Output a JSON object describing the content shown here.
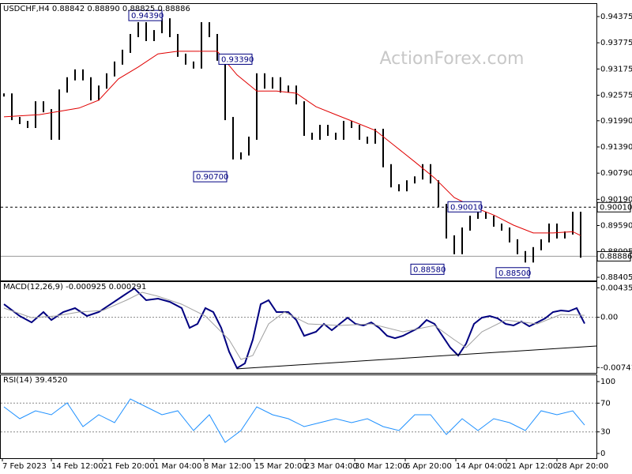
{
  "chart_data": [
    {
      "type": "line",
      "title": "USDCHF,H4 0.88842 0.88890 0.88825 0.88886",
      "watermark": "ActionForex.com",
      "xlim": [
        -0.5,
        75
      ],
      "ylim": [
        0.88333,
        0.94664
      ],
      "yticks": [
        0.94375,
        0.93775,
        0.93175,
        0.92575,
        {
          "value": 0.9199,
          "label": "0.91990"
        },
        {
          "value": 0.9139,
          "label": "0.91390"
        },
        {
          "value": 0.9079,
          "label": "0.90790"
        },
        {
          "value": 0.9019,
          "label": "0.90190"
        },
        {
          "value": 0.8959,
          "label": "0.89590"
        },
        0.88995,
        0.88405
      ],
      "series": [
        {
          "color": "#000000",
          "style": "bars",
          "values": [
            0.9258,
            0.9204,
            0.9195,
            0.9186,
            0.924,
            0.9222,
            0.9159,
            0.9267,
            0.9295,
            0.9313,
            0.9295,
            0.9249,
            0.9276,
            0.9304,
            0.9331,
            0.9358,
            0.9394,
            0.9421,
            0.9385,
            0.9403,
            0.943,
            0.9394,
            0.9349,
            0.9331,
            0.9322,
            0.9421,
            0.9394,
            0.934,
            0.9204,
            0.9114,
            0.9123,
            0.9159,
            0.9304,
            0.9276,
            0.9295,
            0.9267,
            0.9276,
            0.924,
            0.9168,
            0.9159,
            0.9186,
            0.9168,
            0.9159,
            0.9195,
            0.9186,
            0.9159,
            0.915,
            0.9177,
            0.9096,
            0.905,
            0.9041,
            0.9059,
            0.9068,
            0.9096,
            0.9059,
            0.9005,
            0.8933,
            0.8897,
            0.8951,
            0.8978,
            0.8987,
            0.8978,
            0.896,
            0.8951,
            0.8924,
            0.8897,
            0.8878,
            0.8906,
            0.8924,
            0.896,
            0.8933,
            0.8942,
            0.8987,
            0.8889
          ]
        },
        {
          "color": "#e00000",
          "x": [
            0,
            4.5,
            9.5,
            12,
            14.5,
            17,
            19.5,
            22,
            24.5,
            27,
            29.5,
            32,
            34.5,
            37,
            39.5,
            42,
            44.5,
            47,
            49.5,
            52,
            54.5,
            57,
            59.5,
            62,
            64.5,
            67,
            69.5,
            72,
            73
          ],
          "values": [
            0.9208,
            0.9213,
            0.9228,
            0.9246,
            0.9295,
            0.9322,
            0.9352,
            0.9358,
            0.9358,
            0.9358,
            0.9304,
            0.9267,
            0.9267,
            0.9262,
            0.9231,
            0.9213,
            0.9195,
            0.9177,
            0.9141,
            0.9105,
            0.9068,
            0.9023,
            0.9001,
            0.8983,
            0.896,
            0.8942,
            0.8942,
            0.8945,
            0.8936
          ]
        }
      ],
      "hlines": [
        {
          "value": 0.9001,
          "label": "0.90010",
          "style": "dashed"
        },
        {
          "value": 0.88886,
          "label": "0.88886",
          "style": "solid"
        }
      ],
      "annotations": [
        {
          "x": 15.8,
          "value": 0.9439,
          "label": "0.94390"
        },
        {
          "x": 27.2,
          "value": 0.9339,
          "label": "0.93390"
        },
        {
          "x": 24,
          "value": 0.907,
          "label": "0.90700"
        },
        {
          "x": 56.2,
          "value": 0.9001,
          "label": "0.90010"
        },
        {
          "x": 51.5,
          "value": 0.8858,
          "label": "0.88580"
        },
        {
          "x": 62.3,
          "value": 0.885,
          "label": "0.88500"
        }
      ]
    },
    {
      "type": "line",
      "title": "MACD(12,26,9) -0.000925 0.000291",
      "xlim": [
        -0.5,
        75
      ],
      "ylim": [
        -0.0082,
        0.0052
      ],
      "yticks": [
        0.004354,
        {
          "value": 0,
          "label": "0.00"
        },
        -0.007417
      ],
      "levels": [
        0
      ],
      "series": [
        {
          "color": "#000080",
          "width": 2,
          "x": [
            0,
            2,
            3.5,
            5,
            6,
            7.5,
            9,
            10.5,
            12,
            13.5,
            15,
            16.5,
            18,
            19.5,
            21,
            22.5,
            23.5,
            24.5,
            25.5,
            26.5,
            27.5,
            28.5,
            29.5,
            30.5,
            31.5,
            32.5,
            33.5,
            34.5,
            36,
            37,
            38,
            39.5,
            40.5,
            41.5,
            42.5,
            43.5,
            44.5,
            45.5,
            46.5,
            47.5,
            48.5,
            49.5,
            50.5,
            51.5,
            52.5,
            53.5,
            54.5,
            55.5,
            56.5,
            57.5,
            58.5,
            59.5,
            60.5,
            61.5,
            62.5,
            63.5,
            64.5,
            65.5,
            66.5,
            67.5,
            68.5,
            69.5,
            70.5,
            71.5,
            72.5,
            73.5
          ],
          "values": [
            0.00193,
            0.00019,
            -0.00075,
            0.00077,
            -0.0004,
            0.00077,
            0.00135,
            0.00019,
            0.00077,
            0.00193,
            0.0031,
            0.00426,
            0.00252,
            0.00275,
            0.00228,
            0.00135,
            -0.00156,
            -0.00098,
            0.00135,
            0.00077,
            -0.00156,
            -0.00506,
            -0.0075,
            -0.0068,
            -0.00331,
            0.00193,
            0.00252,
            0.00077,
            0.00077,
            -0.0004,
            -0.00273,
            -0.00214,
            -0.00098,
            -0.00191,
            -0.00098,
            -5e-05,
            -0.00098,
            -0.00121,
            -0.00075,
            -0.00156,
            -0.00273,
            -0.00308,
            -0.00273,
            -0.00214,
            -0.00156,
            -0.0004,
            -0.00098,
            -0.00273,
            -0.00447,
            -0.00564,
            -0.00389,
            -0.00098,
            -5e-05,
            0.00019,
            -0.00016,
            -0.00098,
            -0.00121,
            -0.00063,
            -0.00133,
            -0.00075,
            -0.00016,
            0.00077,
            0.001,
            0.00089,
            0.00135,
            -0.00093
          ]
        },
        {
          "color": "#a0a0a0",
          "width": 1,
          "x": [
            0,
            3.5,
            6.5,
            9.5,
            12.5,
            15.5,
            17.5,
            19.5,
            22.5,
            25.5,
            28.5,
            30,
            31.5,
            33.5,
            35.5,
            38.5,
            42.5,
            46.5,
            50.5,
            54.5,
            57,
            58.5,
            60.5,
            63.5,
            67.5,
            70.5,
            73.5
          ],
          "values": [
            0.00135,
            -5e-05,
            0.00019,
            0.00077,
            0.001,
            0.00252,
            0.00368,
            0.0031,
            0.00193,
            0.00019,
            -0.00331,
            -0.00622,
            -0.00564,
            -0.00098,
            0.00077,
            -0.00098,
            -0.00121,
            -0.00098,
            -0.00214,
            -0.00121,
            -0.00331,
            -0.00447,
            -0.00214,
            -0.0004,
            -0.00098,
            0.00042,
            0.00029
          ]
        }
      ],
      "trendline": {
        "x": [
          29.5,
          75
        ],
        "values": [
          -0.0076,
          -0.00424
        ]
      }
    },
    {
      "type": "line",
      "title": "RSI(14) 39.4520",
      "xlim": [
        -0.5,
        75
      ],
      "ylim": [
        -6.6,
        108.8
      ],
      "yticks": [
        100,
        70,
        30,
        0
      ],
      "levels": [
        70,
        30
      ],
      "series": [
        {
          "color": "#1e90ff",
          "width": 1,
          "x": [
            0,
            2,
            4,
            6,
            8,
            10,
            12,
            14,
            16,
            18,
            20,
            22,
            24,
            26,
            28,
            30,
            32,
            34,
            36,
            38,
            40,
            42,
            44,
            46,
            48,
            50,
            52,
            54,
            56,
            58,
            60,
            62,
            64,
            66,
            68,
            70,
            72,
            73.5
          ],
          "values": [
            64.8,
            48.4,
            59.3,
            53.8,
            70.3,
            37.4,
            53.8,
            42.9,
            75.8,
            64.8,
            53.8,
            59.3,
            31.9,
            53.8,
            15.4,
            31.9,
            64.8,
            53.8,
            48.4,
            37.4,
            42.9,
            48.4,
            42.9,
            48.4,
            37.4,
            31.9,
            53.8,
            53.8,
            26.4,
            48.4,
            31.9,
            48.4,
            42.9,
            31.9,
            59.3,
            53.8,
            59.3,
            39.45
          ]
        }
      ],
      "xticks": [
        {
          "value": -0.2,
          "label": "7 Feb 2023"
        },
        {
          "value": 6,
          "label": "14 Feb 12:00"
        },
        {
          "value": 12.5,
          "label": "21 Feb 20:00"
        },
        {
          "value": 19,
          "label": "1 Mar 04:00"
        },
        {
          "value": 25.3,
          "label": "8 Mar 12:00"
        },
        {
          "value": 31.7,
          "label": "15 Mar 20:00"
        },
        {
          "value": 38.1,
          "label": "23 Mar 04:00"
        },
        {
          "value": 44.4,
          "label": "30 Mar 12:00"
        },
        {
          "value": 50.8,
          "label": "6 Apr 20:00"
        },
        {
          "value": 57.2,
          "label": "14 Apr 04:00"
        },
        {
          "value": 63.6,
          "label": "21 Apr 12:00"
        },
        {
          "value": 70,
          "label": "28 Apr 20:00"
        }
      ]
    }
  ]
}
